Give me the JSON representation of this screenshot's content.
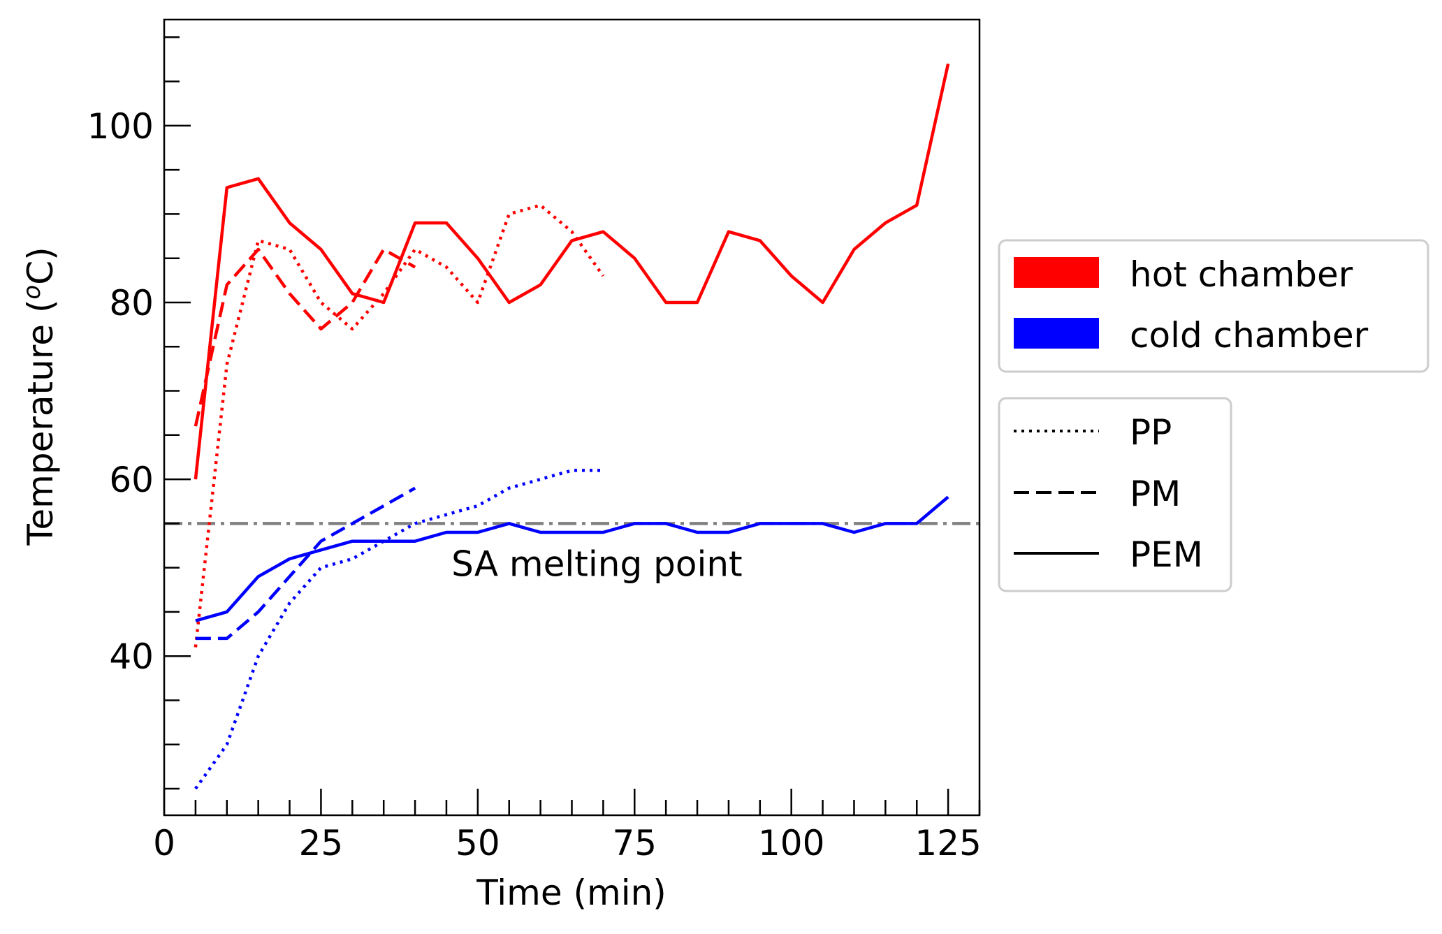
{
  "chart_data": {
    "type": "line",
    "xlabel": "Time (min)",
    "ylabel_main": "Temperature (",
    "ylabel_sup": "o",
    "ylabel_tail": "C)",
    "xlim": [
      0,
      130
    ],
    "ylim": [
      22,
      112
    ],
    "xticks": [
      0,
      25,
      50,
      75,
      100,
      125
    ],
    "xtick_labels": [
      "0",
      "25",
      "50",
      "75",
      "100",
      "125"
    ],
    "yticks": [
      40,
      60,
      80,
      100
    ],
    "ytick_labels": [
      "40",
      "60",
      "80",
      "100"
    ],
    "x_minor_step": 5,
    "y_minor_step": 5,
    "grid": false,
    "reference_line": {
      "y": 55,
      "label": "SA melting point",
      "color": "#808080",
      "style": "dashdot"
    },
    "legend_color": {
      "placement": "right",
      "entries": [
        {
          "label": "hot chamber",
          "color": "#ff0000"
        },
        {
          "label": "cold chamber",
          "color": "#0000ff"
        }
      ]
    },
    "legend_style": {
      "placement": "right",
      "entries": [
        {
          "label": "PP",
          "style": "dotted"
        },
        {
          "label": "PM",
          "style": "dashed"
        },
        {
          "label": "PEM",
          "style": "solid"
        }
      ]
    },
    "series": [
      {
        "chamber": "hot",
        "config": "PEM",
        "color": "#ff0000",
        "style": "solid",
        "x": [
          5,
          10,
          15,
          20,
          25,
          30,
          35,
          40,
          45,
          50,
          55,
          60,
          65,
          70,
          75,
          80,
          85,
          90,
          95,
          100,
          105,
          110,
          115,
          120,
          125
        ],
        "y": [
          60,
          93,
          94,
          89,
          86,
          81,
          80,
          89,
          89,
          85,
          80,
          82,
          87,
          88,
          85,
          80,
          80,
          88,
          87,
          83,
          80,
          86,
          89,
          91,
          107
        ]
      },
      {
        "chamber": "hot",
        "config": "PP",
        "color": "#ff0000",
        "style": "dotted",
        "x": [
          5,
          10,
          15,
          20,
          25,
          30,
          35,
          40,
          45,
          50,
          55,
          60,
          65,
          70
        ],
        "y": [
          41,
          73,
          87,
          86,
          80,
          77,
          81,
          86,
          84,
          80,
          90,
          91,
          88,
          83
        ]
      },
      {
        "chamber": "hot",
        "config": "PM",
        "color": "#ff0000",
        "style": "dashed",
        "x": [
          5,
          10,
          15,
          20,
          25,
          30,
          35,
          40
        ],
        "y": [
          66,
          82,
          86,
          81,
          77,
          80,
          86,
          84
        ]
      },
      {
        "chamber": "cold",
        "config": "PEM",
        "color": "#0000ff",
        "style": "solid",
        "x": [
          5,
          10,
          15,
          20,
          25,
          30,
          35,
          40,
          45,
          50,
          55,
          60,
          65,
          70,
          75,
          80,
          85,
          90,
          95,
          100,
          105,
          110,
          115,
          120,
          125
        ],
        "y": [
          44,
          45,
          49,
          51,
          52,
          53,
          53,
          53,
          54,
          54,
          55,
          54,
          54,
          54,
          55,
          55,
          54,
          54,
          55,
          55,
          55,
          54,
          55,
          55,
          58
        ]
      },
      {
        "chamber": "cold",
        "config": "PP",
        "color": "#0000ff",
        "style": "dotted",
        "x": [
          5,
          10,
          15,
          20,
          25,
          30,
          35,
          40,
          45,
          50,
          55,
          60,
          65,
          70
        ],
        "y": [
          25,
          30,
          40,
          46,
          50,
          51,
          53,
          55,
          56,
          57,
          59,
          60,
          61,
          61
        ]
      },
      {
        "chamber": "cold",
        "config": "PM",
        "color": "#0000ff",
        "style": "dashed",
        "x": [
          5,
          10,
          15,
          20,
          25,
          30,
          35,
          40
        ],
        "y": [
          42,
          42,
          45,
          49,
          53,
          55,
          57,
          59
        ]
      }
    ]
  }
}
